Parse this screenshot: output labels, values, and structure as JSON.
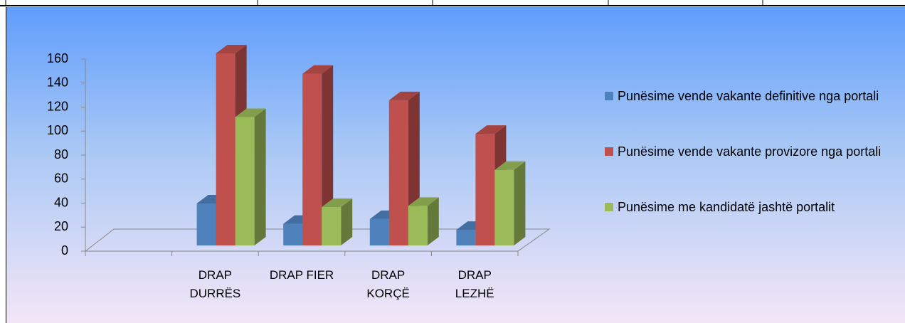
{
  "chart_data": {
    "type": "bar3d",
    "categories": [
      null,
      "DRAP DURRËS",
      "DRAP FIER",
      "DRAP KORÇË",
      "DRAP LEZHË"
    ],
    "series": [
      {
        "name": "Punësime vende vakante definitive nga portali",
        "color": "#4f81bd",
        "values": [
          null,
          35,
          18,
          22,
          13
        ]
      },
      {
        "name": "Punësime vende vakante provizore nga portali",
        "color": "#c0504d",
        "values": [
          null,
          160,
          143,
          121,
          93
        ]
      },
      {
        "name": "Punësime me kandidatë jashtë portalit",
        "color": "#9bbb59",
        "values": [
          null,
          107,
          32,
          33,
          63
        ]
      }
    ],
    "ylim": [
      0,
      160
    ],
    "yticks": [
      0,
      20,
      40,
      60,
      80,
      100,
      120,
      140,
      160
    ],
    "legend": "right"
  }
}
